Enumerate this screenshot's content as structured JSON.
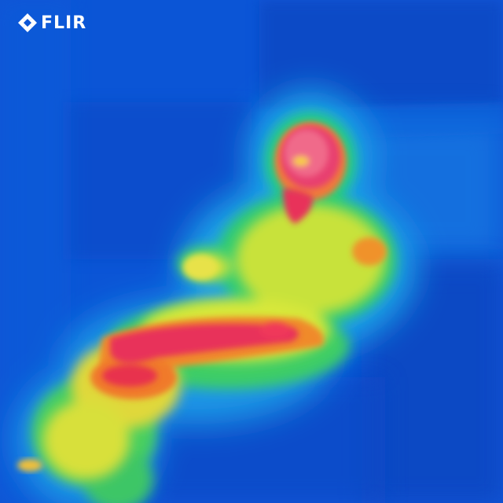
{
  "logo": {
    "text": "FLIR",
    "icon": "flir-diamond-icon",
    "color": "#ffffff"
  },
  "thermal_palette": {
    "cold": "#0a4fd0",
    "cool": "#1aa3e8",
    "mid": "#28d07a",
    "warm": "#d8e83a",
    "hot": "#f07a2a",
    "hottest": "#e8305a"
  }
}
